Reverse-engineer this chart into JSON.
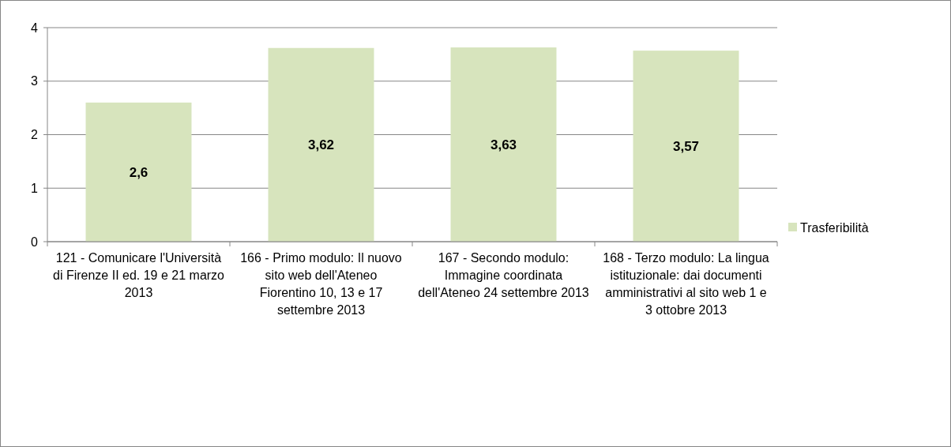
{
  "chart_data": {
    "type": "bar",
    "categories": [
      "121 - Comunicare l'Università di Firenze II ed. 19 e 21 marzo 2013",
      "166 - Primo modulo: Il nuovo sito web dell'Ateneo Fiorentino 10, 13 e 17 settembre 2013",
      "167 - Secondo modulo: Immagine coordinata dell'Ateneo 24 settembre 2013",
      "168 - Terzo modulo: La lingua istituzionale: dai documenti amministrativi al sito web 1 e 3 ottobre 2013"
    ],
    "series": [
      {
        "name": "Trasferibilità",
        "color": "#d7e4bd",
        "values": [
          2.6,
          3.62,
          3.63,
          3.57
        ],
        "value_labels": [
          "2,6",
          "3,62",
          "3,63",
          "3,57"
        ]
      }
    ],
    "ylim": [
      0,
      4
    ],
    "yticks": [
      0,
      1,
      2,
      3,
      4
    ],
    "grid": "y",
    "legend": "right"
  }
}
